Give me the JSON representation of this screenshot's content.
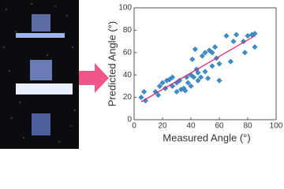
{
  "chart_data": {
    "type": "scatter",
    "xlabel": "Measured Angle (°)",
    "ylabel": "Predicted Angle (°)",
    "x": [
      5,
      7,
      8,
      15,
      17,
      18,
      20,
      22,
      23,
      25,
      27,
      27,
      30,
      30,
      32,
      33,
      35,
      36,
      37,
      38,
      40,
      40,
      41,
      42,
      43,
      44,
      45,
      45,
      47,
      48,
      50,
      50,
      52,
      53,
      55,
      55,
      57,
      58,
      60,
      60,
      65,
      68,
      70,
      72,
      77,
      78,
      80,
      83,
      85,
      85
    ],
    "y": [
      20,
      25,
      17,
      25,
      22,
      30,
      33,
      28,
      35,
      36,
      30,
      38,
      25,
      33,
      35,
      27,
      28,
      26,
      38,
      33,
      40,
      30,
      54,
      38,
      63,
      45,
      42,
      35,
      38,
      57,
      60,
      43,
      37,
      62,
      60,
      48,
      65,
      55,
      35,
      50,
      75,
      52,
      70,
      76,
      70,
      60,
      75,
      76,
      77,
      65
    ],
    "color": "#3a8fd0",
    "line": {
      "x": [
        5,
        85
      ],
      "y": [
        16,
        75
      ],
      "color": "#d6276e"
    },
    "xlim": [
      0,
      100
    ],
    "ylim": [
      0,
      100
    ],
    "xticks": [
      0,
      20,
      40,
      60,
      80,
      100
    ],
    "yticks": [
      0,
      20,
      40,
      60,
      80,
      100
    ]
  }
}
